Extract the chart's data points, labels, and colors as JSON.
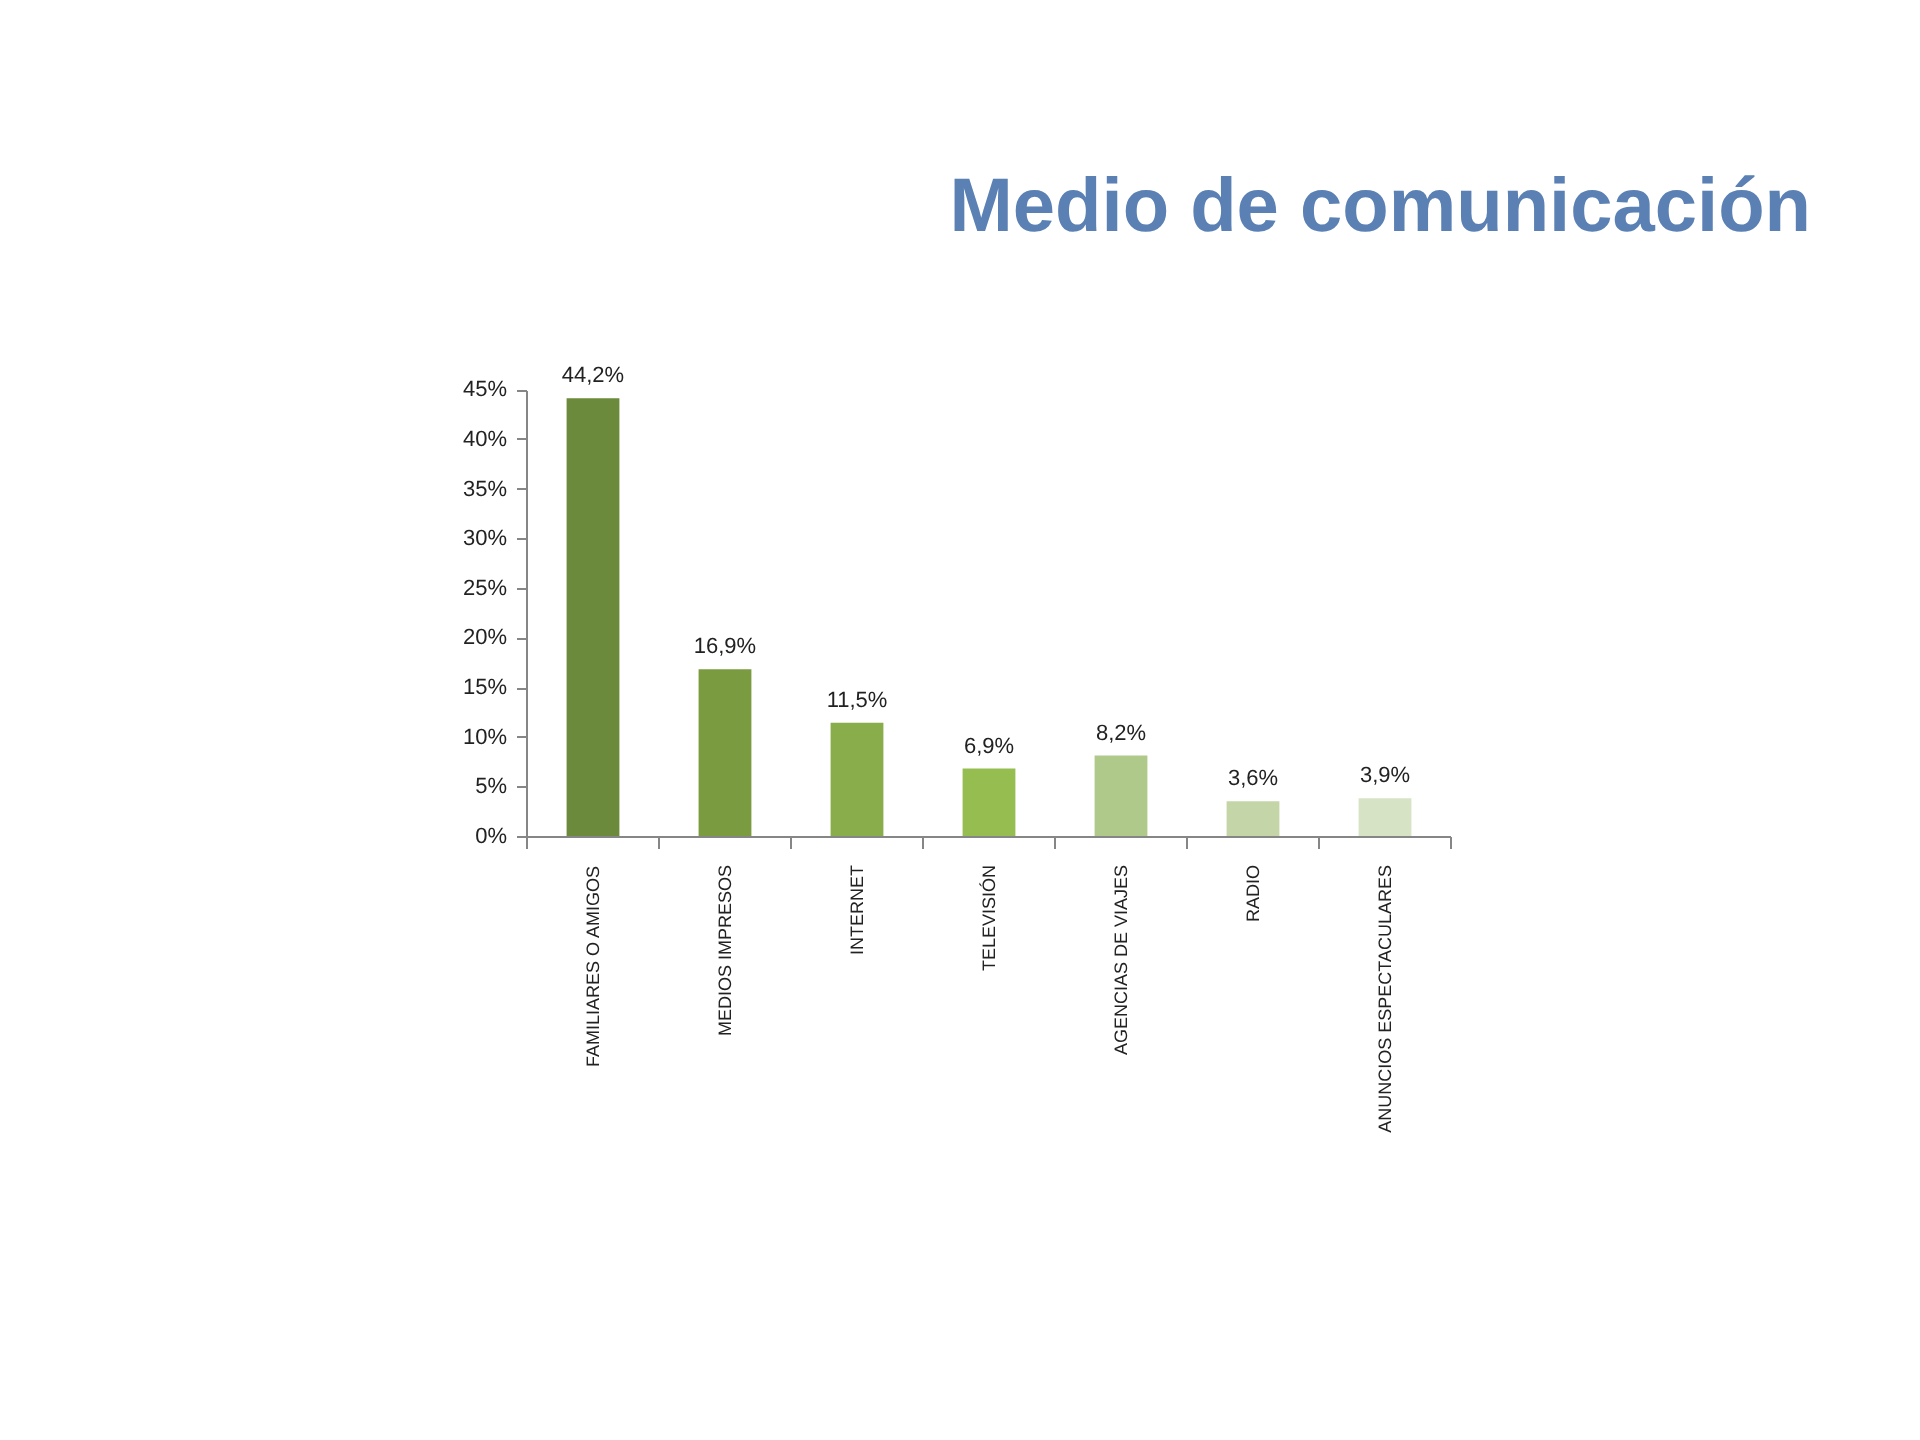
{
  "chart_data": {
    "type": "bar",
    "title": "Medio de comunicación",
    "categories": [
      "FAMILIARES O AMIGOS",
      "MEDIOS IMPRESOS",
      "INTERNET",
      "TELEVISIÓN",
      "AGENCIAS DE VIAJES",
      "RADIO",
      "ANUNCIOS ESPECTACULARES"
    ],
    "values": [
      44.2,
      16.9,
      11.5,
      6.9,
      8.2,
      3.6,
      3.9
    ],
    "colors": [
      "#6b8a3b",
      "#7b9b41",
      "#89ad4a",
      "#96bd50",
      "#afc98b",
      "#c4d6a7",
      "#d7e3c5"
    ],
    "value_labels": [
      "44,2%",
      "16,9%",
      "11,5%",
      "6,9%",
      "8,2%",
      "3,6%",
      "3,9%"
    ],
    "ylim": [
      0,
      45
    ],
    "yticks": [
      {
        "value": 0,
        "label": "0%"
      },
      {
        "value": 5,
        "label": "5%"
      },
      {
        "value": 10,
        "label": "10%"
      },
      {
        "value": 15,
        "label": "15%"
      },
      {
        "value": 20,
        "label": "20%"
      },
      {
        "value": 25,
        "label": "25%"
      },
      {
        "value": 30,
        "label": "30%"
      },
      {
        "value": 35,
        "label": "35%"
      },
      {
        "value": 40,
        "label": "40%"
      },
      {
        "value": 45,
        "label": "45%"
      }
    ],
    "grid": false
  }
}
